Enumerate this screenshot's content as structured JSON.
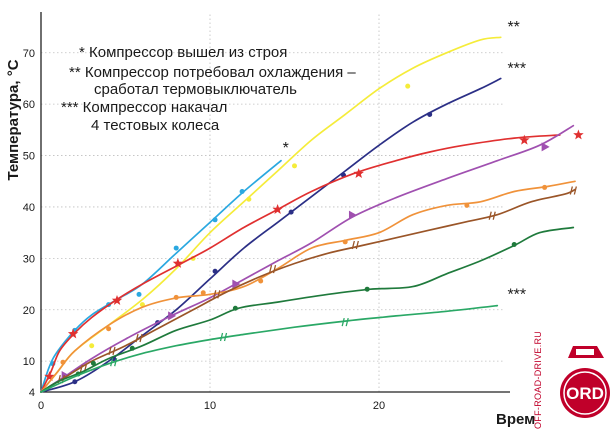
{
  "chart_data": {
    "type": "line",
    "xlabel": "Время, мин",
    "ylabel": "Температура, °С",
    "xlim": [
      0,
      30
    ],
    "ylim": [
      4,
      76
    ],
    "x_ticks": [
      0,
      10,
      20
    ],
    "y_ticks": [
      4,
      10,
      20,
      30,
      40,
      50,
      60,
      70
    ],
    "grid": true,
    "legend": [
      "* Компрессор вышел из строя",
      "** Компрессор потребовал охлаждения –",
      "сработал термовыключатель",
      "*** Компрессор накачал",
      "4 тестовых колеса"
    ],
    "annotations": [
      {
        "text": "*",
        "x": 14.3,
        "y": 50.5
      },
      {
        "text": "**",
        "x": 27.6,
        "y": 74
      },
      {
        "text": "***",
        "x": 27.6,
        "y": 66
      },
      {
        "text": "***",
        "x": 27.6,
        "y": 22
      }
    ],
    "series": [
      {
        "color": "#2aa8e0",
        "marker": "dot",
        "points": [
          [
            0,
            4
          ],
          [
            0.5,
            9
          ],
          [
            1,
            12
          ],
          [
            2,
            16
          ],
          [
            3,
            19
          ],
          [
            4.5,
            22
          ],
          [
            6,
            25
          ],
          [
            8,
            31
          ],
          [
            10,
            37
          ],
          [
            12,
            43
          ],
          [
            14.2,
            49
          ]
        ],
        "markers": [
          [
            0.7,
            9.5
          ],
          [
            2,
            16
          ],
          [
            4,
            21
          ],
          [
            5.8,
            23
          ],
          [
            8,
            32
          ],
          [
            10.3,
            37.5
          ],
          [
            11.9,
            43
          ]
        ]
      },
      {
        "color": "#f5ec3a",
        "marker": "dot",
        "points": [
          [
            0,
            4
          ],
          [
            1,
            8
          ],
          [
            2,
            12
          ],
          [
            4,
            17
          ],
          [
            6,
            22
          ],
          [
            8,
            28
          ],
          [
            10,
            35
          ],
          [
            12,
            41
          ],
          [
            14,
            47
          ],
          [
            16,
            53
          ],
          [
            18,
            58
          ],
          [
            20,
            63
          ],
          [
            22,
            67
          ],
          [
            24,
            70
          ],
          [
            26,
            72.5
          ],
          [
            27.2,
            73
          ]
        ],
        "markers": [
          [
            3,
            13
          ],
          [
            6,
            21
          ],
          [
            9,
            30
          ],
          [
            12.3,
            41.5
          ],
          [
            15,
            48
          ],
          [
            21.7,
            63.5
          ]
        ]
      },
      {
        "color": "#2b2f86",
        "marker": "dot",
        "points": [
          [
            0,
            4
          ],
          [
            2,
            6
          ],
          [
            4,
            10
          ],
          [
            6,
            15
          ],
          [
            8,
            20
          ],
          [
            10,
            26
          ],
          [
            12,
            32
          ],
          [
            14,
            37
          ],
          [
            16,
            42
          ],
          [
            18,
            47
          ],
          [
            20,
            52
          ],
          [
            22,
            56.5
          ],
          [
            24,
            60
          ],
          [
            26,
            63
          ],
          [
            27.2,
            65
          ]
        ],
        "markers": [
          [
            2,
            6
          ],
          [
            4.3,
            10.5
          ],
          [
            6.9,
            17.5
          ],
          [
            10.3,
            27.5
          ],
          [
            14.8,
            39
          ],
          [
            17.9,
            46.2
          ],
          [
            23,
            58
          ]
        ]
      },
      {
        "color": "#e03030",
        "marker": "star",
        "points": [
          [
            0,
            4
          ],
          [
            0.6,
            8
          ],
          [
            1.1,
            12
          ],
          [
            2,
            15.5
          ],
          [
            3,
            18.5
          ],
          [
            4.4,
            21.8
          ],
          [
            6,
            25
          ],
          [
            8.3,
            29
          ],
          [
            10,
            32
          ],
          [
            12,
            36
          ],
          [
            14,
            39.5
          ],
          [
            16,
            43
          ],
          [
            18.5,
            46.5
          ],
          [
            21,
            49
          ],
          [
            23,
            50.7
          ],
          [
            25,
            52
          ],
          [
            28,
            53.4
          ],
          [
            30.7,
            54
          ]
        ],
        "markers": [
          [
            0.5,
            7
          ],
          [
            1.9,
            15.3
          ],
          [
            4.5,
            21.8
          ],
          [
            8.1,
            29
          ],
          [
            14,
            39.5
          ],
          [
            18.8,
            46.5
          ],
          [
            28.6,
            53
          ],
          [
            31.8,
            54
          ]
        ]
      },
      {
        "color": "#a050b0",
        "marker": "triangle",
        "points": [
          [
            0,
            4
          ],
          [
            1.4,
            7
          ],
          [
            3,
            10.5
          ],
          [
            5,
            14.3
          ],
          [
            7.7,
            18.8
          ],
          [
            9.8,
            22
          ],
          [
            11.5,
            25
          ],
          [
            14,
            29.5
          ],
          [
            16,
            33
          ],
          [
            18.4,
            38
          ],
          [
            21,
            41.8
          ],
          [
            24,
            45.5
          ],
          [
            27,
            49
          ],
          [
            29.5,
            52
          ],
          [
            31.5,
            55.8
          ]
        ],
        "markers": [
          [
            1.4,
            7.2
          ],
          [
            7.7,
            18.8
          ],
          [
            11.5,
            25
          ],
          [
            18.4,
            38.4
          ],
          [
            29.8,
            51.7
          ]
        ]
      },
      {
        "color": "#f0923a",
        "marker": "dot",
        "points": [
          [
            0,
            4
          ],
          [
            1,
            8
          ],
          [
            2,
            12
          ],
          [
            4,
            17
          ],
          [
            6,
            20.5
          ],
          [
            8,
            22.3
          ],
          [
            10,
            23
          ],
          [
            12,
            24.5
          ],
          [
            14,
            28
          ],
          [
            16,
            32
          ],
          [
            18,
            33.5
          ],
          [
            20,
            35
          ],
          [
            22,
            38.5
          ],
          [
            24,
            40.3
          ],
          [
            26,
            41
          ],
          [
            28,
            43
          ],
          [
            30,
            44
          ],
          [
            31.6,
            45
          ]
        ],
        "markers": [
          [
            1.3,
            9.8
          ],
          [
            4,
            16.3
          ],
          [
            8,
            22.4
          ],
          [
            9.6,
            23.3
          ],
          [
            13,
            25.6
          ],
          [
            18,
            33.2
          ],
          [
            25.2,
            40.3
          ],
          [
            29.8,
            43.8
          ]
        ]
      },
      {
        "color": "#9a5528",
        "marker": "tick",
        "points": [
          [
            0,
            4
          ],
          [
            1.5,
            7
          ],
          [
            3,
            10
          ],
          [
            5,
            13
          ],
          [
            7,
            16.5
          ],
          [
            9,
            20
          ],
          [
            11,
            23.5
          ],
          [
            13,
            26.5
          ],
          [
            15,
            29
          ],
          [
            17,
            31
          ],
          [
            19,
            32.5
          ],
          [
            21,
            34
          ],
          [
            23,
            35.5
          ],
          [
            25,
            37
          ],
          [
            27,
            38.5
          ],
          [
            29,
            41
          ],
          [
            31,
            42.5
          ],
          [
            31.6,
            43.4
          ]
        ],
        "markers": [
          [
            1.2,
            6.5
          ],
          [
            2.5,
            8.5
          ],
          [
            4.2,
            12
          ],
          [
            5.8,
            14.5
          ],
          [
            10.4,
            23
          ],
          [
            13.7,
            27.9
          ],
          [
            18.6,
            32.6
          ],
          [
            26.7,
            38.3
          ],
          [
            31.5,
            43.2
          ]
        ]
      },
      {
        "color": "#1f7a3c",
        "marker": "dot",
        "points": [
          [
            0,
            4
          ],
          [
            1,
            6
          ],
          [
            2.5,
            8
          ],
          [
            4,
            10.5
          ],
          [
            6,
            13
          ],
          [
            8,
            16
          ],
          [
            10,
            18
          ],
          [
            11.7,
            20.3
          ],
          [
            14,
            21.5
          ],
          [
            17,
            23
          ],
          [
            19.5,
            24
          ],
          [
            22,
            24.5
          ],
          [
            24,
            27
          ],
          [
            26,
            29.5
          ],
          [
            28,
            32.5
          ],
          [
            29.5,
            35
          ],
          [
            31.5,
            36
          ]
        ],
        "markers": [
          [
            2.2,
            7.5
          ],
          [
            3.1,
            9.6
          ],
          [
            5.4,
            12.5
          ],
          [
            11.5,
            20.3
          ],
          [
            19.3,
            24
          ],
          [
            28,
            32.7
          ]
        ]
      },
      {
        "color": "#2aa866",
        "marker": "tick",
        "points": [
          [
            0,
            4
          ],
          [
            2,
            7
          ],
          [
            4,
            9.5
          ],
          [
            6,
            11.5
          ],
          [
            8,
            13
          ],
          [
            10,
            14.2
          ],
          [
            12,
            15.2
          ],
          [
            15,
            16.6
          ],
          [
            18,
            17.8
          ],
          [
            21,
            18.8
          ],
          [
            24,
            19.7
          ],
          [
            27,
            20.8
          ]
        ],
        "markers": [
          [
            4.3,
            9.8
          ],
          [
            10.8,
            14.7
          ],
          [
            18,
            17.6
          ]
        ]
      }
    ]
  },
  "watermark": {
    "text": "OFF-ROAD-DRIVE.RU",
    "badge": "ORD",
    "color": "#c0002a"
  }
}
